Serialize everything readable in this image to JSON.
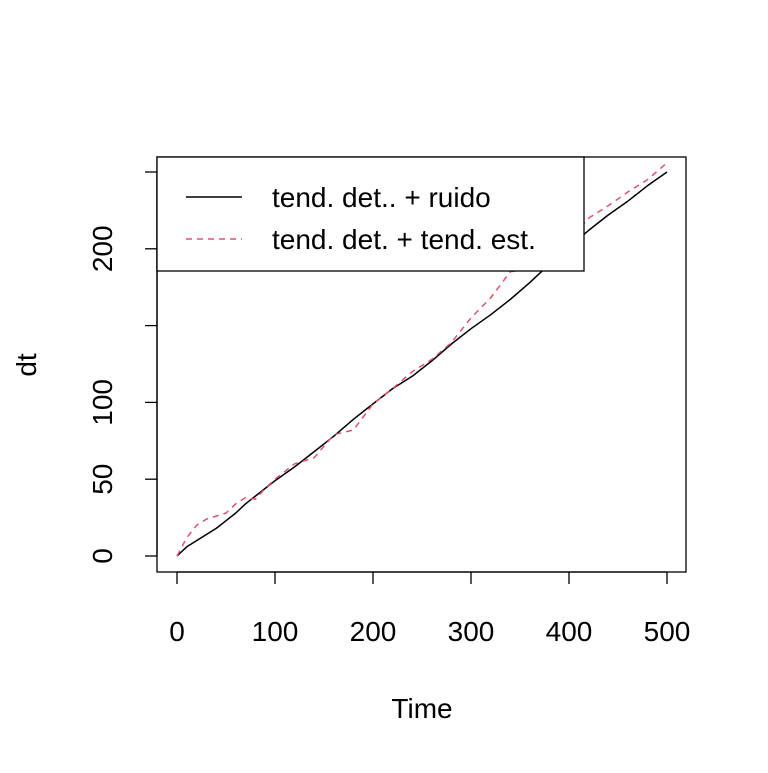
{
  "chart_data": {
    "type": "line",
    "title": "",
    "xlabel": "Time",
    "ylabel": "dt",
    "xlim": [
      0,
      500
    ],
    "ylim": [
      0,
      250
    ],
    "x_ticks": [
      0,
      100,
      200,
      300,
      400,
      500
    ],
    "x_tick_labels": [
      "0",
      "100",
      "200",
      "300",
      "400",
      "500"
    ],
    "y_ticks": [
      0,
      50,
      100,
      150,
      200,
      250
    ],
    "y_tick_labels": [
      "0",
      "50",
      "100",
      "",
      "200",
      ""
    ],
    "grid": false,
    "legend_position": "top-left",
    "series": [
      {
        "name": "tend. det.. + ruido",
        "color": "#000000",
        "dash": "solid",
        "x": [
          0,
          10,
          20,
          30,
          40,
          50,
          60,
          70,
          80,
          90,
          100,
          120,
          140,
          160,
          180,
          200,
          220,
          240,
          260,
          280,
          300,
          320,
          340,
          360,
          380,
          400,
          420,
          440,
          460,
          480,
          500
        ],
        "y": [
          0,
          6,
          10,
          14,
          18,
          23,
          28,
          34,
          39,
          44,
          49,
          58,
          68,
          78,
          89,
          99,
          109,
          117,
          127,
          138,
          148,
          157,
          167,
          178,
          190,
          201,
          212,
          222,
          231,
          241,
          250
        ]
      },
      {
        "name": "tend. det. + tend. est.",
        "color": "#DF536B",
        "dash": "dashed",
        "x": [
          0,
          10,
          20,
          30,
          40,
          50,
          60,
          70,
          80,
          90,
          100,
          120,
          140,
          160,
          180,
          200,
          220,
          240,
          260,
          280,
          300,
          320,
          340,
          360,
          380,
          400,
          420,
          440,
          460,
          480,
          500
        ],
        "y": [
          0,
          12,
          20,
          24,
          26,
          28,
          34,
          38,
          37,
          44,
          50,
          60,
          64,
          79,
          82,
          99,
          109,
          120,
          128,
          139,
          155,
          168,
          185,
          187,
          193,
          205,
          220,
          228,
          237,
          245,
          256
        ]
      }
    ]
  }
}
